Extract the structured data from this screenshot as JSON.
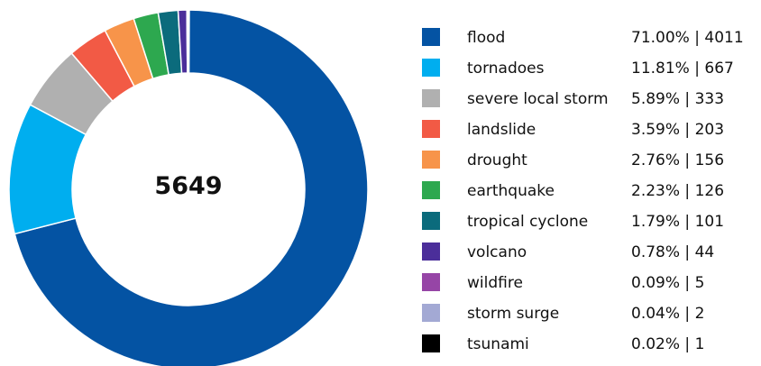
{
  "chart_data": {
    "type": "pie",
    "variant": "donut",
    "total": "5649",
    "legend_position": "right",
    "slices": [
      {
        "label": "flood",
        "percent": "71.00%",
        "value": 4011,
        "color": "#0453a3"
      },
      {
        "label": "tornadoes",
        "percent": "11.81%",
        "value": 667,
        "color": "#00aeef"
      },
      {
        "label": "severe local storm",
        "percent": "5.89%",
        "value": 333,
        "color": "#b0b0b0"
      },
      {
        "label": "landslide",
        "percent": "3.59%",
        "value": 203,
        "color": "#f25a45"
      },
      {
        "label": "drought",
        "percent": "2.76%",
        "value": 156,
        "color": "#f7944a"
      },
      {
        "label": "earthquake",
        "percent": "2.23%",
        "value": 126,
        "color": "#2da84f"
      },
      {
        "label": "tropical cyclone",
        "percent": "1.79%",
        "value": 101,
        "color": "#0b6b7c"
      },
      {
        "label": "volcano",
        "percent": "0.78%",
        "value": 44,
        "color": "#4b2e9a"
      },
      {
        "label": "wildfire",
        "percent": "0.09%",
        "value": 5,
        "color": "#9645a6"
      },
      {
        "label": "storm surge",
        "percent": "0.04%",
        "value": 2,
        "color": "#a3a9d4"
      },
      {
        "label": "tsunami",
        "percent": "0.02%",
        "value": 1,
        "color": "#000000"
      }
    ]
  }
}
